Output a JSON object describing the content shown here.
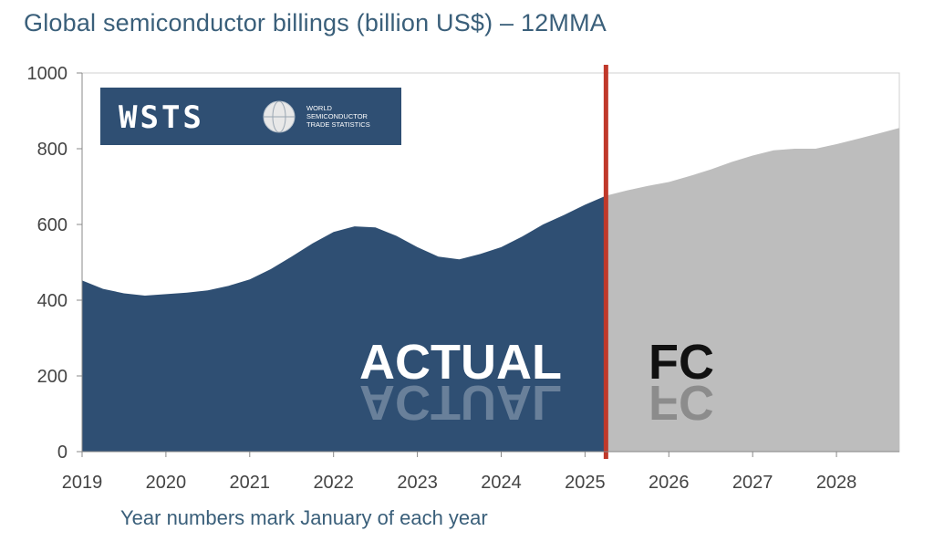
{
  "title": "Global semiconductor billings (billion US$) – 12MMA",
  "note": "Year numbers mark January of each year",
  "logo": {
    "wordmark": "WSTS",
    "tagline": [
      "WORLD",
      "SEMICONDUCTOR",
      "TRADE STATISTICS"
    ]
  },
  "colors": {
    "actual": "#2f4f73",
    "forecast": "#bdbdbd",
    "divider": "#c0392b",
    "actual_label": "#ffffff",
    "forecast_label": "#111111"
  },
  "chart_data": {
    "type": "area",
    "title": "Global semiconductor billings (billion US$) – 12MMA",
    "ylim": [
      0,
      1000
    ],
    "yticks": [
      "0",
      "200",
      "400",
      "600",
      "800",
      "1000"
    ],
    "xlim": [
      2019,
      2028.75
    ],
    "xticks": [
      "2019",
      "2020",
      "2021",
      "2022",
      "2023",
      "2024",
      "2025",
      "2026",
      "2027",
      "2028"
    ],
    "divider_x": 2025.25,
    "labels": {
      "actual": "ACTUAL",
      "forecast": "FC"
    },
    "series": [
      {
        "key": "actual",
        "x": [
          2019,
          2019.25,
          2019.5,
          2019.75,
          2020,
          2020.25,
          2020.5,
          2020.75,
          2021,
          2021.25,
          2021.5,
          2021.75,
          2022,
          2022.25,
          2022.5,
          2022.75,
          2023,
          2023.25,
          2023.5,
          2023.75,
          2024,
          2024.25,
          2024.5,
          2024.75,
          2025,
          2025.25
        ],
        "y": [
          452,
          430,
          418,
          412,
          416,
          420,
          426,
          438,
          455,
          482,
          515,
          550,
          580,
          595,
          592,
          570,
          540,
          515,
          508,
          522,
          540,
          568,
          600,
          625,
          652,
          676
        ]
      },
      {
        "key": "forecast",
        "x": [
          2025.25,
          2025.5,
          2025.75,
          2026,
          2026.25,
          2026.5,
          2026.75,
          2027,
          2027.25,
          2027.5,
          2027.75,
          2028,
          2028.25,
          2028.5,
          2028.75
        ],
        "y": [
          676,
          690,
          702,
          712,
          728,
          745,
          765,
          782,
          796,
          800,
          800,
          812,
          826,
          840,
          855
        ]
      }
    ]
  }
}
